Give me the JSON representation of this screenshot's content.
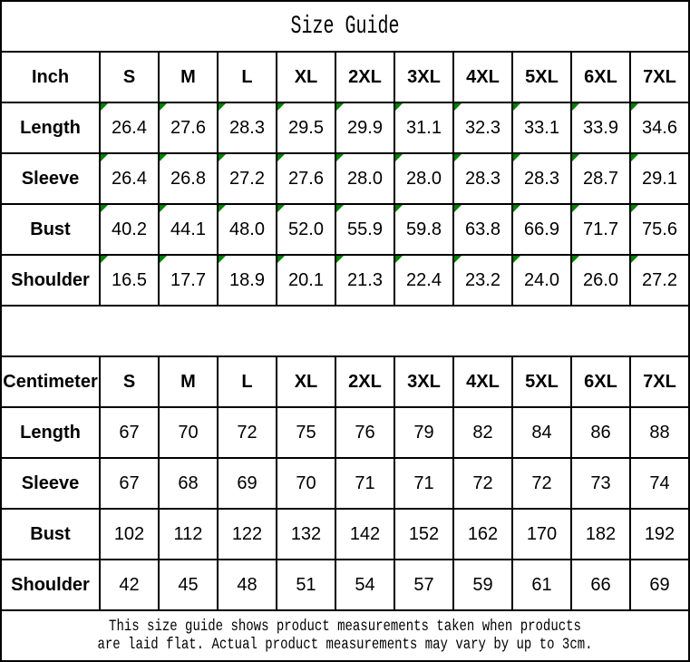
{
  "title": "Size Guide",
  "sizes": [
    "S",
    "M",
    "L",
    "XL",
    "2XL",
    "3XL",
    "4XL",
    "5XL",
    "6XL",
    "7XL"
  ],
  "tables": [
    {
      "unit": "Inch",
      "rows": [
        {
          "label": "Length",
          "values": [
            "26.4",
            "27.6",
            "28.3",
            "29.5",
            "29.9",
            "31.1",
            "32.3",
            "33.1",
            "33.9",
            "34.6"
          ]
        },
        {
          "label": "Sleeve",
          "values": [
            "26.4",
            "26.8",
            "27.2",
            "27.6",
            "28.0",
            "28.0",
            "28.3",
            "28.3",
            "28.7",
            "29.1"
          ]
        },
        {
          "label": "Bust",
          "values": [
            "40.2",
            "44.1",
            "48.0",
            "52.0",
            "55.9",
            "59.8",
            "63.8",
            "66.9",
            "71.7",
            "75.6"
          ]
        },
        {
          "label": "Shoulder",
          "values": [
            "16.5",
            "17.7",
            "18.9",
            "20.1",
            "21.3",
            "22.4",
            "23.2",
            "24.0",
            "26.0",
            "27.2"
          ]
        }
      ]
    },
    {
      "unit": "Centimeter",
      "rows": [
        {
          "label": "Length",
          "values": [
            "67",
            "70",
            "72",
            "75",
            "76",
            "79",
            "82",
            "84",
            "86",
            "88"
          ]
        },
        {
          "label": "Sleeve",
          "values": [
            "67",
            "68",
            "69",
            "70",
            "71",
            "71",
            "72",
            "72",
            "73",
            "74"
          ]
        },
        {
          "label": "Bust",
          "values": [
            "102",
            "112",
            "122",
            "132",
            "142",
            "152",
            "162",
            "170",
            "182",
            "192"
          ]
        },
        {
          "label": "Shoulder",
          "values": [
            "42",
            "45",
            "48",
            "51",
            "54",
            "57",
            "59",
            "61",
            "66",
            "69"
          ]
        }
      ]
    }
  ],
  "footer": {
    "line1": "This size guide shows product measurements taken when products",
    "line2": "are laid flat. Actual product measurements may vary by up to 3cm."
  },
  "colors": {
    "marker_green": "#008000",
    "border_black": "#000000",
    "background_white": "#ffffff"
  },
  "chart_data": [
    {
      "type": "table",
      "title": "Size Guide (Inch)",
      "columns": [
        "Inch",
        "S",
        "M",
        "L",
        "XL",
        "2XL",
        "3XL",
        "4XL",
        "5XL",
        "6XL",
        "7XL"
      ],
      "rows": [
        [
          "Length",
          26.4,
          27.6,
          28.3,
          29.5,
          29.9,
          31.1,
          32.3,
          33.1,
          33.9,
          34.6
        ],
        [
          "Sleeve",
          26.4,
          26.8,
          27.2,
          27.6,
          28.0,
          28.0,
          28.3,
          28.3,
          28.7,
          29.1
        ],
        [
          "Bust",
          40.2,
          44.1,
          48.0,
          52.0,
          55.9,
          59.8,
          63.8,
          66.9,
          71.7,
          75.6
        ],
        [
          "Shoulder",
          16.5,
          17.7,
          18.9,
          20.1,
          21.3,
          22.4,
          23.2,
          24.0,
          26.0,
          27.2
        ]
      ]
    },
    {
      "type": "table",
      "title": "Size Guide (Centimeter)",
      "columns": [
        "Centimeter",
        "S",
        "M",
        "L",
        "XL",
        "2XL",
        "3XL",
        "4XL",
        "5XL",
        "6XL",
        "7XL"
      ],
      "rows": [
        [
          "Length",
          67,
          70,
          72,
          75,
          76,
          79,
          82,
          84,
          86,
          88
        ],
        [
          "Sleeve",
          67,
          68,
          69,
          70,
          71,
          71,
          72,
          72,
          73,
          74
        ],
        [
          "Bust",
          102,
          112,
          122,
          132,
          142,
          152,
          162,
          170,
          182,
          192
        ],
        [
          "Shoulder",
          42,
          45,
          48,
          51,
          54,
          57,
          59,
          61,
          66,
          69
        ]
      ]
    }
  ]
}
